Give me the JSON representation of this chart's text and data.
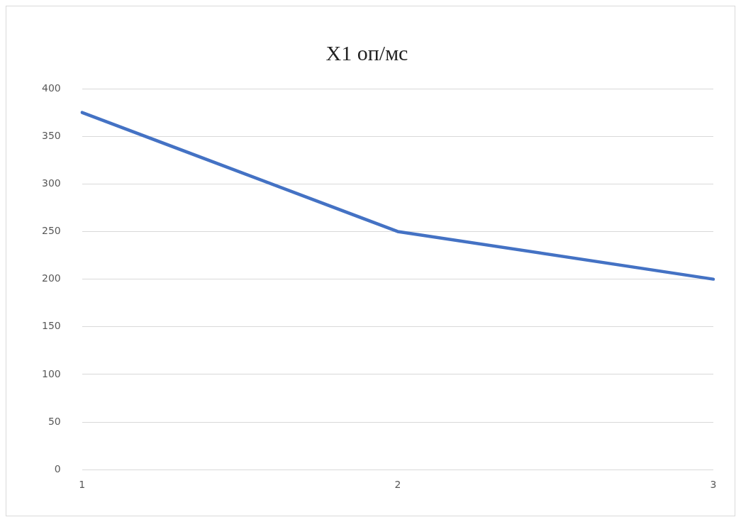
{
  "chart_data": {
    "type": "line",
    "title": "X1 оп/мс",
    "categories": [
      "1",
      "2",
      "3"
    ],
    "series": [
      {
        "color": "#4472c4",
        "values": [
          375,
          250,
          200
        ]
      }
    ],
    "ylim": [
      0,
      400
    ],
    "yticks": [
      0,
      50,
      100,
      150,
      200,
      250,
      300,
      350,
      400
    ],
    "grid": "y",
    "marker": "none",
    "line_style": "solid",
    "legend": false
  }
}
